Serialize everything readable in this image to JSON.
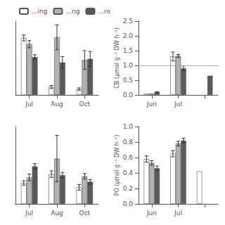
{
  "chart_data": [
    {
      "type": "bar",
      "categories": [
        "Jul",
        "Aug",
        "Oct"
      ],
      "series": [
        {
          "name": "...ing",
          "color": "#ffffff",
          "values": [
            1.93,
            0.27,
            0.2
          ],
          "errors": [
            0.1,
            0.05,
            0.04
          ]
        },
        {
          "name": "...ng",
          "color": "#b2b2b2",
          "values": [
            1.72,
            1.95,
            1.18
          ],
          "errors": [
            0.12,
            0.42,
            0.32
          ]
        },
        {
          "name": "...re",
          "color": "#5a5a5a",
          "values": [
            1.28,
            1.1,
            1.22
          ],
          "errors": [
            0.08,
            0.2,
            0.25
          ]
        }
      ],
      "ylim": [
        0,
        2.5
      ],
      "yticks": [
        0,
        0.5,
        1,
        1.5,
        2,
        2.5
      ],
      "tick_labels": "x",
      "legend": "upper left",
      "grid": false
    },
    {
      "type": "bar",
      "categories": [
        "Jun",
        "Jul",
        null
      ],
      "series": [
        {
          "color": "#ffffff",
          "values": [
            0.05,
            1.3,
            null
          ],
          "errors": [
            0.0,
            0.15,
            null
          ]
        },
        {
          "color": "#b2b2b2",
          "values": [
            0.05,
            1.32,
            null
          ],
          "errors": [
            0.0,
            0.05,
            null
          ]
        },
        {
          "color": "#5a5a5a",
          "values": [
            0.1,
            0.9,
            0.65
          ],
          "errors": [
            0.01,
            0.08,
            null
          ]
        }
      ],
      "ylim": [
        0,
        2.5
      ],
      "yticks": [
        {
          "value": 0,
          "label": "0.0"
        },
        0.5,
        {
          "value": 1,
          "label": "1.0"
        },
        1.5,
        {
          "value": 2,
          "label": "2.0"
        },
        2.5
      ],
      "ylabel": "CB (μmol g⁻¹ DW h⁻¹)",
      "hline": 1.0,
      "grid": false
    },
    {
      "type": "bar",
      "categories": [
        "Jul",
        "Aug",
        "Oct"
      ],
      "series": [
        {
          "color": "#ffffff",
          "values": [
            0.38,
            0.54,
            0.3
          ],
          "errors": [
            0.04,
            0.06,
            0.05
          ]
        },
        {
          "color": "#b2b2b2",
          "values": [
            0.48,
            0.82,
            0.5
          ],
          "errors": [
            0.06,
            0.42,
            0.05
          ]
        },
        {
          "color": "#5a5a5a",
          "values": [
            0.68,
            0.52,
            0.4
          ],
          "errors": [
            0.05,
            0.05,
            0.04
          ]
        }
      ],
      "ylim": [
        0,
        1.4
      ],
      "yticks": [
        0,
        0.2,
        0.4,
        0.6,
        0.8,
        1,
        1.2,
        1.4
      ],
      "tick_labels": "x",
      "grid": false
    },
    {
      "type": "bar",
      "categories": [
        "Jun",
        "Jul",
        null
      ],
      "series": [
        {
          "color": "#ffffff",
          "values": [
            0.58,
            0.65,
            0.42
          ],
          "errors": [
            0.04,
            0.04,
            null
          ]
        },
        {
          "color": "#b2b2b2",
          "values": [
            0.53,
            0.78,
            null
          ],
          "errors": [
            0.03,
            0.03,
            null
          ]
        },
        {
          "color": "#5a5a5a",
          "values": [
            0.46,
            0.82,
            null
          ],
          "errors": [
            0.03,
            0.03,
            null
          ]
        }
      ],
      "ylim": [
        0,
        1.0
      ],
      "yticks": [
        {
          "value": 0,
          "label": "0.0"
        },
        0.2,
        0.4,
        0.6,
        0.8,
        {
          "value": 1,
          "label": "1.0"
        }
      ],
      "ylabel": "PO (μmol g⁻¹ DW h⁻¹)",
      "grid": false
    }
  ]
}
